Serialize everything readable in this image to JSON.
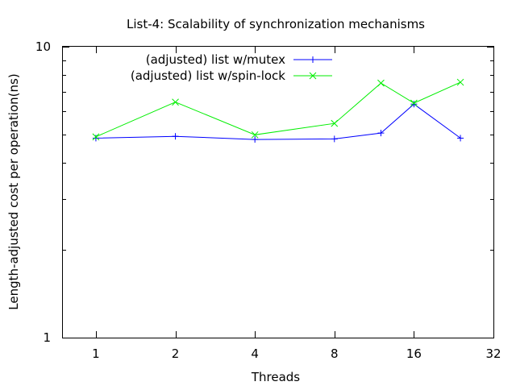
{
  "chart_data": {
    "type": "line",
    "title": "List-4: Scalability of synchronization mechanisms",
    "xlabel": "Threads",
    "ylabel": "Length-adjusted cost per operation(ns)",
    "x_scale": "log2",
    "y_scale": "log10",
    "xlim": [
      0.75,
      32
    ],
    "ylim": [
      1,
      10
    ],
    "x_ticks": [
      1,
      2,
      4,
      8,
      16,
      32
    ],
    "x_tick_labels": [
      "1",
      "2",
      "4",
      "8",
      "16",
      "32"
    ],
    "y_ticks": [
      1,
      10
    ],
    "y_tick_labels": [
      "1",
      "10"
    ],
    "y_minor_ticks": [
      2,
      3,
      4,
      5,
      6,
      7,
      8,
      9
    ],
    "grid": false,
    "legend_position": "top-left-center",
    "series": [
      {
        "name": "(adjusted) list w/mutex",
        "color": "#0000ff",
        "marker": "plus",
        "x": [
          1,
          2,
          4,
          8,
          12,
          16,
          24
        ],
        "y": [
          4.85,
          4.92,
          4.8,
          4.82,
          5.05,
          6.35,
          4.85
        ]
      },
      {
        "name": "(adjusted) list w/spin-lock",
        "color": "#00ee00",
        "marker": "cross",
        "x": [
          1,
          2,
          4,
          8,
          12,
          16,
          24
        ],
        "y": [
          4.9,
          6.45,
          4.98,
          5.45,
          7.5,
          6.4,
          7.55
        ]
      }
    ]
  }
}
